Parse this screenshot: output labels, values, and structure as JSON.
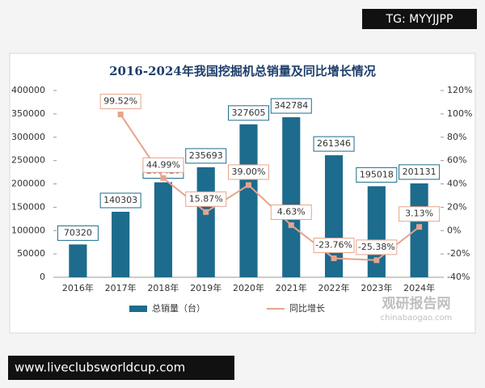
{
  "chart_data": {
    "type": "bar-line",
    "title": "2016-2024年我国挖掘机总销量及同比增长情况",
    "categories": [
      "2016年",
      "2017年",
      "2018年",
      "2019年",
      "2020年",
      "2021年",
      "2022年",
      "2023年",
      "2024年"
    ],
    "series": [
      {
        "name": "总销量（台）",
        "type": "bar",
        "color": "#1d6b8d",
        "values": [
          70320,
          140303,
          203420,
          235693,
          327605,
          342784,
          261346,
          195018,
          201131
        ]
      },
      {
        "name": "同比增长",
        "type": "line",
        "axis": "y2",
        "color": "#e6a48c",
        "values": [
          null,
          99.52,
          44.99,
          15.87,
          39.0,
          4.63,
          -23.76,
          -25.38,
          3.13
        ],
        "value_labels": [
          null,
          "99.52%",
          "44.99%",
          "15.87%",
          "39.00%",
          "4.63%",
          "-23.76%",
          "-25.38%",
          "3.13%"
        ]
      }
    ],
    "ylim": [
      0,
      400000
    ],
    "yticks": [
      0,
      50000,
      100000,
      150000,
      200000,
      250000,
      300000,
      350000,
      400000
    ],
    "y2lim": [
      -40,
      120
    ],
    "y2ticks": [
      {
        "value": -40,
        "label": "-40%"
      },
      {
        "value": -20,
        "label": "-20%"
      },
      {
        "value": 0,
        "label": "0%"
      },
      {
        "value": 20,
        "label": "20%"
      },
      {
        "value": 40,
        "label": "40%"
      },
      {
        "value": 60,
        "label": "60%"
      },
      {
        "value": 80,
        "label": "80%"
      },
      {
        "value": 100,
        "label": "100%"
      },
      {
        "value": 120,
        "label": "120%"
      }
    ],
    "grid": false,
    "legend": "bottom"
  },
  "watermarks": {
    "top_right": "TG: MYYJJPP",
    "bottom_left": "www.liveclubsworldcup.com",
    "logo": "观研报告网",
    "logo_url": "chinabaogao.com"
  }
}
